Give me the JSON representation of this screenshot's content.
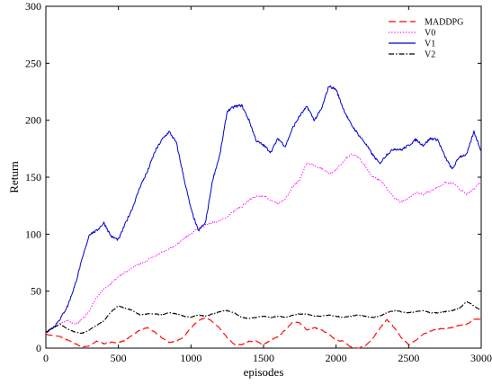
{
  "chart_data": {
    "type": "line",
    "title": "",
    "xlabel": "episodes",
    "ylabel": "Return",
    "xlim": [
      0,
      3000
    ],
    "ylim": [
      0,
      300
    ],
    "xticks": [
      0,
      500,
      1000,
      1500,
      2000,
      2500,
      3000
    ],
    "yticks": [
      0,
      50,
      100,
      150,
      200,
      250,
      300
    ],
    "grid": false,
    "legend_position": "top-right",
    "series": [
      {
        "name": "MADDPG",
        "color": "#ff0000",
        "dash": "dashed",
        "x": [
          0,
          100,
          150,
          200,
          250,
          300,
          350,
          400,
          450,
          500,
          550,
          600,
          650,
          700,
          750,
          800,
          850,
          900,
          950,
          1000,
          1050,
          1100,
          1150,
          1200,
          1250,
          1300,
          1350,
          1400,
          1450,
          1500,
          1550,
          1600,
          1650,
          1700,
          1750,
          1800,
          1850,
          1900,
          1950,
          2000,
          2050,
          2100,
          2150,
          2200,
          2250,
          2300,
          2350,
          2400,
          2450,
          2500,
          2550,
          2600,
          2650,
          2700,
          2750,
          2800,
          2850,
          2900,
          2950,
          3000
        ],
        "y": [
          12,
          10,
          7,
          4,
          1,
          2,
          6,
          4,
          5,
          5,
          7,
          12,
          16,
          18,
          14,
          9,
          5,
          6,
          10,
          18,
          24,
          27,
          23,
          17,
          9,
          3,
          3,
          6,
          6,
          3,
          7,
          10,
          16,
          23,
          22,
          16,
          18,
          16,
          12,
          7,
          6,
          1,
          0,
          2,
          8,
          17,
          25,
          18,
          9,
          3,
          7,
          12,
          15,
          17,
          17,
          18,
          20,
          21,
          25,
          26
        ]
      },
      {
        "name": "V0",
        "color": "#ff00ff",
        "dash": "dotted",
        "x": [
          0,
          100,
          150,
          200,
          250,
          300,
          350,
          400,
          450,
          500,
          550,
          600,
          650,
          700,
          750,
          800,
          850,
          900,
          950,
          1000,
          1050,
          1100,
          1150,
          1200,
          1250,
          1300,
          1350,
          1400,
          1450,
          1500,
          1550,
          1600,
          1650,
          1700,
          1750,
          1800,
          1850,
          1900,
          1950,
          2000,
          2050,
          2100,
          2150,
          2200,
          2250,
          2300,
          2350,
          2400,
          2450,
          2500,
          2550,
          2600,
          2650,
          2700,
          2750,
          2800,
          2850,
          2900,
          2950,
          3000
        ],
        "y": [
          14,
          22,
          24,
          21,
          25,
          33,
          45,
          52,
          57,
          63,
          67,
          71,
          74,
          77,
          81,
          84,
          87,
          91,
          96,
          100,
          105,
          108,
          110,
          112,
          115,
          121,
          124,
          130,
          133,
          134,
          129,
          127,
          131,
          141,
          148,
          163,
          160,
          158,
          153,
          156,
          164,
          170,
          168,
          160,
          150,
          148,
          140,
          132,
          128,
          132,
          136,
          135,
          138,
          141,
          145,
          145,
          140,
          135,
          140,
          146
        ]
      },
      {
        "name": "V1",
        "color": "#0000cc",
        "dash": "solid",
        "x": [
          0,
          50,
          100,
          150,
          200,
          250,
          300,
          350,
          400,
          450,
          500,
          550,
          600,
          650,
          700,
          750,
          800,
          850,
          900,
          950,
          1000,
          1050,
          1100,
          1150,
          1200,
          1250,
          1300,
          1350,
          1400,
          1450,
          1500,
          1550,
          1600,
          1650,
          1700,
          1750,
          1800,
          1850,
          1900,
          1950,
          2000,
          2050,
          2100,
          2150,
          2200,
          2250,
          2300,
          2350,
          2400,
          2450,
          2500,
          2550,
          2600,
          2650,
          2700,
          2750,
          2800,
          2850,
          2900,
          2950,
          3000
        ],
        "y": [
          14,
          18,
          26,
          37,
          55,
          78,
          100,
          103,
          110,
          98,
          95,
          110,
          124,
          142,
          155,
          172,
          183,
          190,
          180,
          150,
          122,
          103,
          110,
          148,
          170,
          208,
          212,
          213,
          200,
          182,
          178,
          172,
          184,
          177,
          193,
          204,
          212,
          200,
          210,
          230,
          227,
          210,
          197,
          188,
          180,
          170,
          162,
          170,
          175,
          174,
          178,
          183,
          178,
          184,
          183,
          168,
          157,
          168,
          170,
          190,
          173
        ]
      },
      {
        "name": "V2",
        "color": "#000000",
        "dash": "dashdot",
        "x": [
          0,
          50,
          100,
          150,
          200,
          250,
          300,
          350,
          400,
          450,
          500,
          550,
          600,
          650,
          700,
          750,
          800,
          850,
          900,
          950,
          1000,
          1050,
          1100,
          1150,
          1200,
          1250,
          1300,
          1350,
          1400,
          1450,
          1500,
          1550,
          1600,
          1650,
          1700,
          1750,
          1800,
          1850,
          1900,
          1950,
          2000,
          2050,
          2100,
          2150,
          2200,
          2250,
          2300,
          2350,
          2400,
          2450,
          2500,
          2550,
          2600,
          2650,
          2700,
          2750,
          2800,
          2850,
          2900,
          2950,
          3000
        ],
        "y": [
          14,
          18,
          21,
          17,
          14,
          13,
          16,
          20,
          24,
          32,
          37,
          35,
          33,
          29,
          30,
          30,
          29,
          31,
          30,
          28,
          27,
          29,
          28,
          30,
          32,
          33,
          31,
          27,
          26,
          27,
          28,
          27,
          28,
          27,
          29,
          30,
          30,
          28,
          28,
          29,
          28,
          27,
          28,
          29,
          28,
          27,
          28,
          31,
          33,
          32,
          31,
          32,
          33,
          31,
          31,
          32,
          33,
          35,
          41,
          37,
          33
        ]
      }
    ]
  }
}
